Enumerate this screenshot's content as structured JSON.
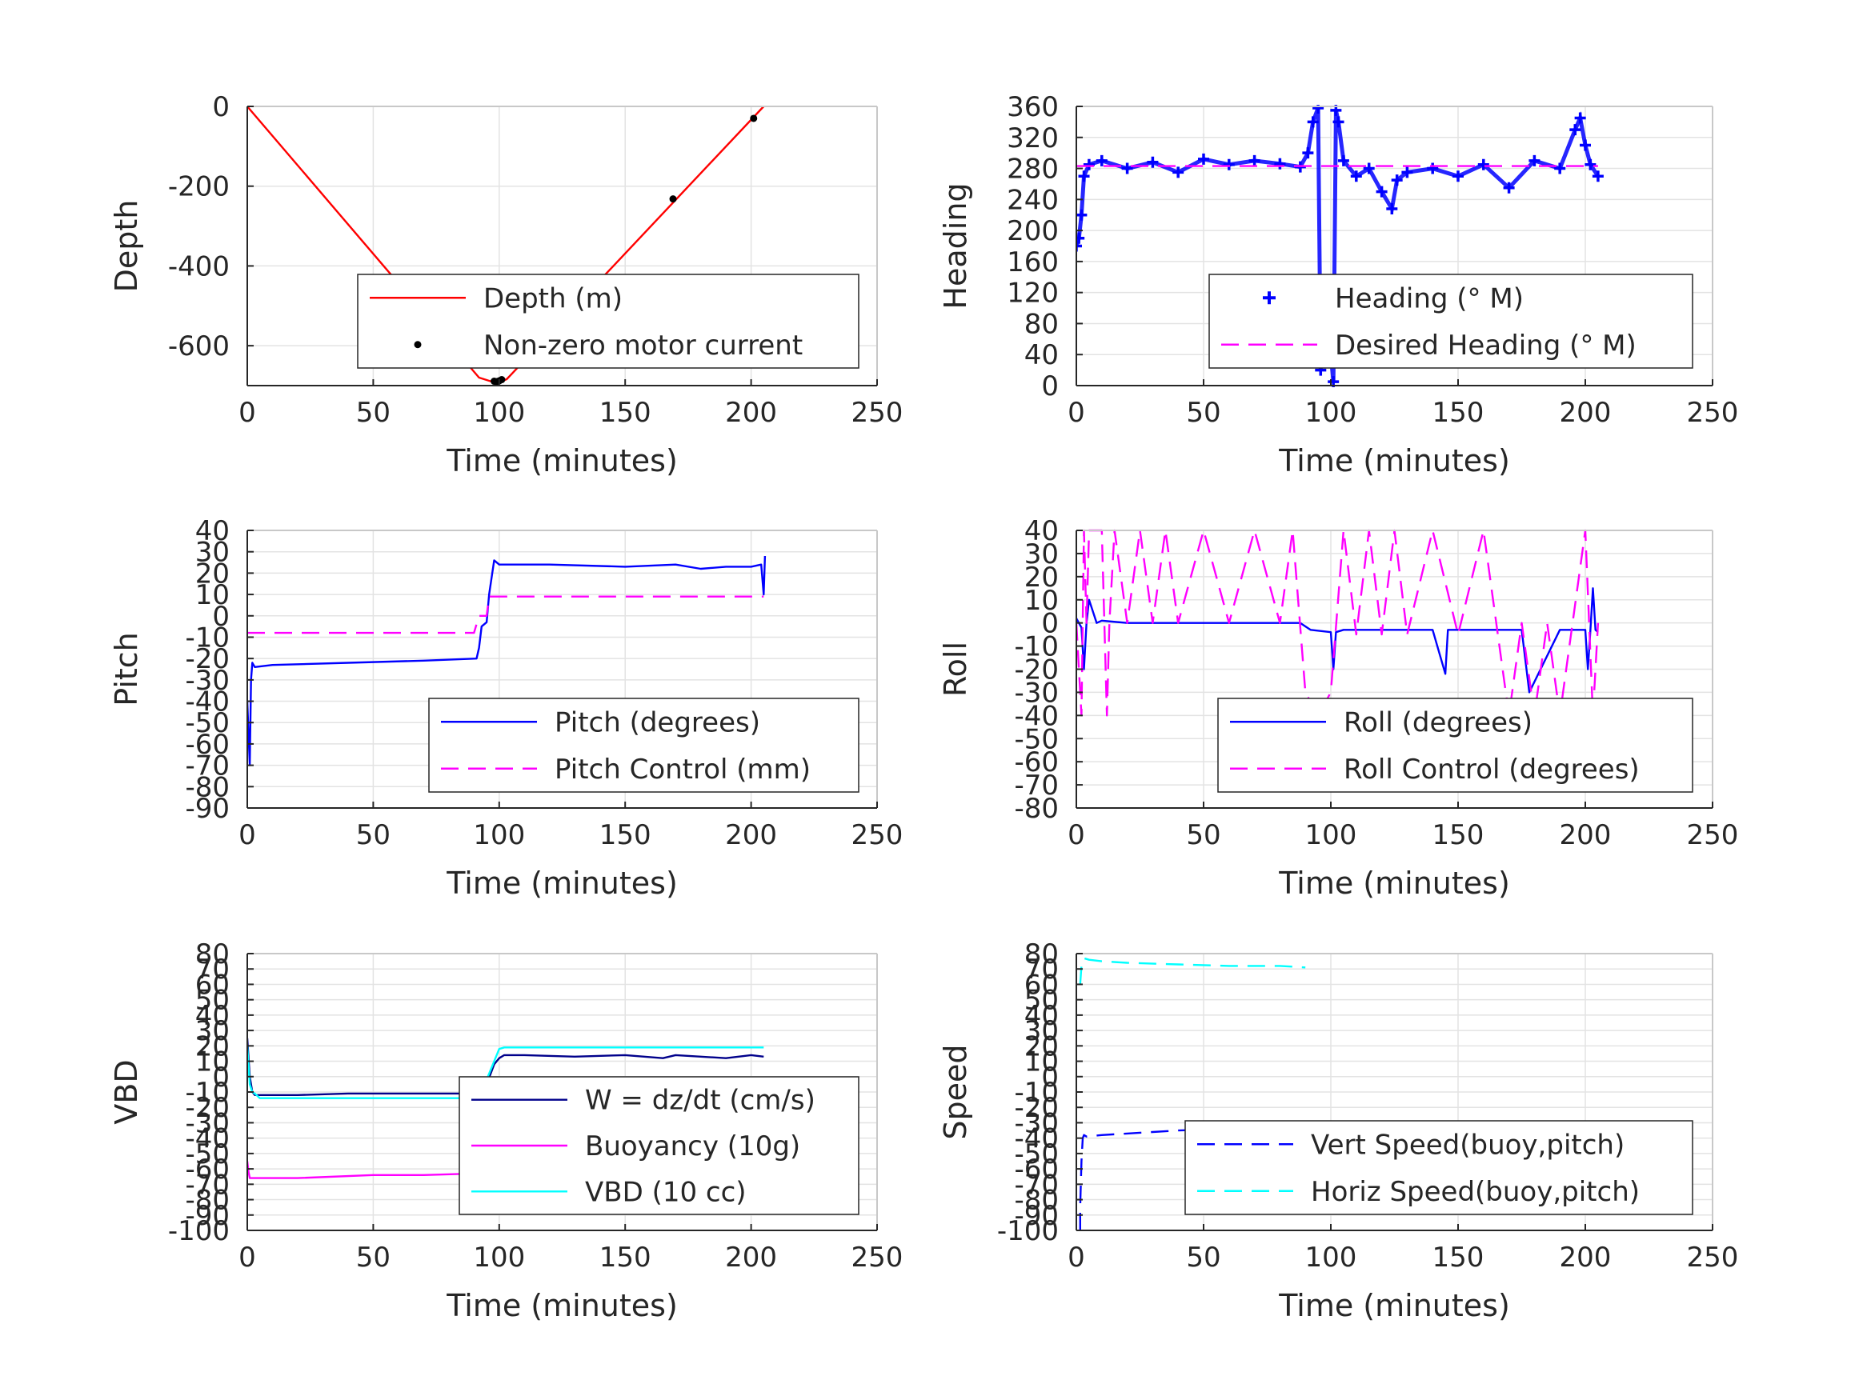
{
  "figure": {
    "background": "#ffffff"
  },
  "chart_data": [
    {
      "id": "depth",
      "type": "line",
      "xlabel": "Time (minutes)",
      "ylabel": "Depth",
      "xlim": [
        0,
        250
      ],
      "ylim": [
        -700,
        0
      ],
      "xticks": [
        0,
        50,
        100,
        150,
        200,
        250
      ],
      "yticks": [
        -600,
        -400,
        -200,
        0
      ],
      "ytick_labels": [
        "-600",
        "-400",
        "-200",
        "0"
      ],
      "grid": true,
      "legend_placement": "lower-right",
      "series": [
        {
          "name": "Depth (m)",
          "style": "solid",
          "color": "#ff0000",
          "x": [
            0,
            92,
            97,
            100,
            103,
            205
          ],
          "y": [
            0,
            -680,
            -690,
            -692,
            -684,
            0
          ]
        },
        {
          "name": "Non-zero motor current",
          "style": "dot",
          "color": "#000000",
          "x": [
            98,
            99,
            100,
            101,
            169,
            201
          ],
          "y": [
            -689,
            -690,
            -688,
            -685,
            -232,
            -30
          ]
        }
      ]
    },
    {
      "id": "heading",
      "type": "scatter",
      "xlabel": "Time (minutes)",
      "ylabel": "Heading",
      "xlim": [
        0,
        250
      ],
      "ylim": [
        0,
        360
      ],
      "xticks": [
        0,
        50,
        100,
        150,
        200,
        250
      ],
      "yticks": [
        0,
        40,
        80,
        120,
        160,
        200,
        240,
        280,
        320,
        360
      ],
      "ytick_labels": [
        "0",
        "40",
        "80",
        "120",
        "160",
        "200",
        "240",
        "280",
        "320",
        "360"
      ],
      "grid": true,
      "legend_placement": "lower-right",
      "series": [
        {
          "name": "Heading (° M)",
          "style": "plus",
          "color": "#0000ff",
          "x": [
            0,
            1,
            2,
            3,
            5,
            10,
            20,
            30,
            40,
            50,
            60,
            70,
            80,
            88,
            91,
            93,
            95,
            96,
            97,
            98,
            99,
            100,
            101,
            102,
            103,
            105,
            110,
            115,
            120,
            124,
            126,
            130,
            140,
            150,
            160,
            170,
            180,
            190,
            196,
            198,
            200,
            202,
            205
          ],
          "y": [
            180,
            190,
            220,
            270,
            285,
            290,
            280,
            288,
            275,
            292,
            285,
            290,
            286,
            282,
            300,
            340,
            358,
            20,
            80,
            110,
            90,
            40,
            5,
            355,
            340,
            290,
            270,
            280,
            250,
            228,
            265,
            275,
            280,
            270,
            285,
            255,
            290,
            280,
            330,
            345,
            310,
            285,
            270
          ]
        },
        {
          "name": "Desired Heading (° M)",
          "style": "dash",
          "color": "#ff00ff",
          "x": [
            0,
            205
          ],
          "y": [
            283,
            283
          ]
        }
      ]
    },
    {
      "id": "pitch",
      "type": "line",
      "xlabel": "Time (minutes)",
      "ylabel": "Pitch",
      "xlim": [
        0,
        250
      ],
      "ylim": [
        -90,
        40
      ],
      "xticks": [
        0,
        50,
        100,
        150,
        200,
        250
      ],
      "yticks": [
        -90,
        -80,
        -70,
        -60,
        -50,
        -40,
        -30,
        -20,
        -10,
        0,
        10,
        20,
        30,
        40
      ],
      "ytick_labels": [
        "-90",
        "-80",
        "-70",
        "-60",
        "-50",
        "-40",
        "-30",
        "-20",
        "-10",
        "0",
        "10",
        "20",
        "30",
        "40"
      ],
      "grid": true,
      "legend_placement": "lower-right",
      "series": [
        {
          "name": "Pitch (degrees)",
          "style": "solid",
          "color": "#0000ff",
          "x": [
            0,
            1,
            1.5,
            2,
            3,
            10,
            40,
            70,
            91,
            92,
            93,
            95,
            96,
            98,
            100,
            120,
            150,
            170,
            180,
            190,
            200,
            204,
            205,
            205.5
          ],
          "y": [
            -40,
            -70,
            -30,
            -22,
            -24,
            -23,
            -22,
            -21,
            -20,
            -15,
            -5,
            -3,
            10,
            26,
            24,
            24,
            23,
            24,
            22,
            23,
            23,
            24,
            10,
            28
          ]
        },
        {
          "name": "Pitch Control (mm)",
          "style": "dash",
          "color": "#ff00ff",
          "x": [
            0,
            90,
            92,
            95,
            96,
            205
          ],
          "y": [
            -8,
            -8,
            0,
            0,
            9,
            9
          ]
        }
      ]
    },
    {
      "id": "roll",
      "type": "line",
      "xlabel": "Time (minutes)",
      "ylabel": "Roll",
      "xlim": [
        0,
        250
      ],
      "ylim": [
        -80,
        40
      ],
      "xticks": [
        0,
        50,
        100,
        150,
        200,
        250
      ],
      "yticks": [
        -80,
        -70,
        -60,
        -50,
        -40,
        -30,
        -20,
        -10,
        0,
        10,
        20,
        30,
        40
      ],
      "ytick_labels": [
        "-80",
        "-70",
        "-60",
        "-50",
        "-40",
        "-30",
        "-20",
        "-10",
        "0",
        "10",
        "20",
        "30",
        "40"
      ],
      "grid": true,
      "legend_placement": "lower-right",
      "series": [
        {
          "name": "Roll (degrees)",
          "style": "solid",
          "color": "#0000ff",
          "x": [
            0,
            2,
            3,
            4,
            5,
            8,
            10,
            20,
            30,
            40,
            50,
            60,
            70,
            80,
            88,
            92,
            100,
            101,
            102,
            105,
            110,
            140,
            145,
            146,
            150,
            155,
            175,
            178,
            190,
            200,
            201,
            202,
            203,
            204,
            205
          ],
          "y": [
            2,
            -2,
            -20,
            0,
            10,
            0,
            1,
            0,
            0,
            0,
            0,
            0,
            0,
            0,
            0,
            -3,
            -4,
            -20,
            -4,
            -3,
            -3,
            -3,
            -22,
            -3,
            -3,
            -3,
            -3,
            -30,
            -3,
            -3,
            -20,
            -3,
            15,
            -3,
            -4
          ]
        },
        {
          "name": "Roll Control (degrees)",
          "style": "dash",
          "color": "#ff00ff",
          "x": [
            0,
            2,
            3,
            4,
            5,
            10,
            12,
            13,
            15,
            20,
            25,
            30,
            35,
            40,
            50,
            60,
            70,
            80,
            85,
            90,
            95,
            100,
            105,
            110,
            115,
            120,
            125,
            130,
            140,
            150,
            160,
            170,
            175,
            180,
            185,
            190,
            195,
            200,
            203,
            205
          ],
          "y": [
            0,
            -40,
            40,
            0,
            40,
            40,
            -40,
            0,
            40,
            0,
            40,
            0,
            40,
            0,
            40,
            0,
            40,
            0,
            40,
            -30,
            -40,
            -30,
            40,
            -5,
            40,
            -5,
            40,
            -5,
            40,
            -5,
            40,
            -40,
            0,
            -40,
            0,
            -40,
            0,
            40,
            -40,
            0
          ]
        }
      ]
    },
    {
      "id": "vbd",
      "type": "line",
      "xlabel": "Time (minutes)",
      "ylabel": "VBD",
      "xlim": [
        0,
        250
      ],
      "ylim": [
        -100,
        80
      ],
      "xticks": [
        0,
        50,
        100,
        150,
        200,
        250
      ],
      "yticks": [
        -100,
        -90,
        -80,
        -70,
        -60,
        -50,
        -40,
        -30,
        -20,
        -10,
        0,
        10,
        20,
        30,
        40,
        50,
        60,
        70,
        80
      ],
      "ytick_labels": [
        "-100",
        "-90",
        "-80",
        "-70",
        "-60",
        "-50",
        "-40",
        "-30",
        "-20",
        "-10",
        "0",
        "10",
        "20",
        "30",
        "40",
        "50",
        "60",
        "70",
        "80"
      ],
      "grid": true,
      "legend_placement": "lower-right",
      "series": [
        {
          "name": "W = dz/dt (cm/s)",
          "style": "solid",
          "color": "#00008b",
          "x": [
            0,
            1,
            2,
            3,
            5,
            20,
            40,
            60,
            80,
            88,
            90,
            92,
            95,
            98,
            100,
            102,
            110,
            130,
            150,
            165,
            170,
            180,
            190,
            200,
            205
          ],
          "y": [
            25,
            0,
            -10,
            -12,
            -12,
            -12,
            -11,
            -11,
            -11,
            -11,
            -10,
            -9,
            -5,
            8,
            12,
            14,
            14,
            13,
            14,
            12,
            14,
            13,
            12,
            14,
            13
          ]
        },
        {
          "name": "Buoyancy (10g)",
          "style": "solid",
          "color": "#ff00ff",
          "x": [
            0,
            0.5,
            1,
            20,
            50,
            70,
            90
          ],
          "y": [
            -55,
            -62,
            -66,
            -66,
            -64,
            -64,
            -63
          ]
        },
        {
          "name": "VBD (10 cc)",
          "style": "solid",
          "color": "#00ffff",
          "x": [
            0,
            1,
            2,
            3,
            5,
            90,
            93,
            100,
            102,
            150,
            205
          ],
          "y": [
            20,
            -5,
            -10,
            -11,
            -14,
            -14,
            -10,
            18,
            19,
            19,
            19
          ]
        }
      ]
    },
    {
      "id": "speed",
      "type": "line",
      "xlabel": "Time (minutes)",
      "ylabel": "Speed",
      "xlim": [
        0,
        250
      ],
      "ylim": [
        -100,
        80
      ],
      "xticks": [
        0,
        50,
        100,
        150,
        200,
        250
      ],
      "yticks": [
        -100,
        -90,
        -80,
        -70,
        -60,
        -50,
        -40,
        -30,
        -20,
        -10,
        0,
        10,
        20,
        30,
        40,
        50,
        60,
        70,
        80
      ],
      "ytick_labels": [
        "-100",
        "-90",
        "-80",
        "-70",
        "-60",
        "-50",
        "-40",
        "-30",
        "-20",
        "-10",
        "0",
        "10",
        "20",
        "30",
        "40",
        "50",
        "60",
        "70",
        "80"
      ],
      "grid": true,
      "legend_placement": "lower-right",
      "series": [
        {
          "name": "Vert Speed(buoy,pitch)",
          "style": "dash",
          "color": "#0000ff",
          "x": [
            1.5,
            1.5,
            2,
            2.5,
            3,
            4,
            10,
            20,
            40,
            60,
            80,
            90
          ],
          "y": [
            -100,
            -85,
            -55,
            -40,
            -38,
            -39,
            -38,
            -37,
            -35,
            -34,
            -34,
            -33
          ]
        },
        {
          "name": "Horiz Speed(buoy,pitch)",
          "style": "dash",
          "color": "#00ffff",
          "x": [
            1.5,
            2,
            3,
            5,
            10,
            20,
            40,
            60,
            80,
            90
          ],
          "y": [
            60,
            72,
            77,
            76,
            75,
            74,
            73,
            72,
            72,
            71
          ]
        }
      ]
    }
  ]
}
